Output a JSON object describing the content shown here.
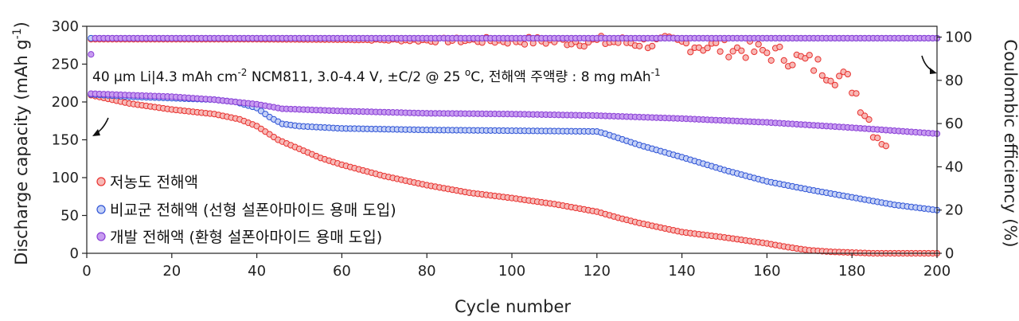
{
  "chart_data": {
    "type": "scatter",
    "condition": {
      "main": "40 μm Li|4.3 mAh cm",
      "sup1": "-2",
      "mid": " NCM811, 3.0-4.4 V, ±C/2 @ 25 ",
      "sup2": "o",
      "tail": "C, 전해액 주액량 : 8 mg mAh",
      "sup3": "-1"
    },
    "xlabel": "Cycle number",
    "ylabel_left": "Discharge capacity (mAh g",
    "ylabel_left_sup": "-1",
    "ylabel_left_end": ")",
    "ylabel_right": "Coulombic efficiency (%)",
    "xlim": [
      0,
      200
    ],
    "ylim_left": [
      0,
      300
    ],
    "ylim_right": [
      0,
      105
    ],
    "xticks": [
      "0",
      "20",
      "40",
      "60",
      "80",
      "100",
      "120",
      "140",
      "160",
      "180",
      "200"
    ],
    "yticks_left": [
      "0",
      "50",
      "100",
      "150",
      "200",
      "250",
      "300"
    ],
    "yticks_right": [
      "0",
      "20",
      "40",
      "60",
      "80",
      "100"
    ],
    "legend_position": "left-middle",
    "series": [
      {
        "name": "저농도 전해액",
        "color": "#e8312f",
        "fill": "#f7b9b6",
        "capacity_keypoints": [
          [
            1,
            209
          ],
          [
            10,
            198
          ],
          [
            20,
            190
          ],
          [
            30,
            184
          ],
          [
            36,
            177
          ],
          [
            40,
            168
          ],
          [
            45,
            150
          ],
          [
            50,
            138
          ],
          [
            55,
            126
          ],
          [
            60,
            117
          ],
          [
            70,
            102
          ],
          [
            80,
            90
          ],
          [
            90,
            80
          ],
          [
            100,
            73
          ],
          [
            110,
            65
          ],
          [
            120,
            55
          ],
          [
            125,
            47
          ],
          [
            130,
            40
          ],
          [
            140,
            28
          ],
          [
            150,
            21
          ],
          [
            160,
            13
          ],
          [
            165,
            8
          ],
          [
            170,
            4
          ],
          [
            175,
            2
          ],
          [
            180,
            1
          ],
          [
            185,
            0
          ],
          [
            200,
            0
          ]
        ],
        "ce_keypoints": [
          [
            1,
            99
          ],
          [
            40,
            99
          ],
          [
            90,
            98.5
          ],
          [
            120,
            98
          ],
          [
            140,
            97
          ],
          [
            150,
            95
          ],
          [
            160,
            93
          ],
          [
            165,
            91
          ],
          [
            170,
            88
          ],
          [
            175,
            84
          ],
          [
            180,
            78
          ],
          [
            184,
            62
          ],
          [
            186,
            55
          ],
          [
            188,
            52
          ]
        ]
      },
      {
        "name": "비교군 전해액 (선형 설폰아마이드 용매 도입)",
        "color": "#2f54d6",
        "fill": "#c4d0f6",
        "capacity_keypoints": [
          [
            1,
            210
          ],
          [
            10,
            207
          ],
          [
            20,
            205
          ],
          [
            30,
            203
          ],
          [
            35,
            200
          ],
          [
            40,
            192
          ],
          [
            43,
            180
          ],
          [
            46,
            171
          ],
          [
            50,
            168
          ],
          [
            60,
            165
          ],
          [
            80,
            163
          ],
          [
            100,
            162
          ],
          [
            120,
            161
          ],
          [
            122,
            158
          ],
          [
            130,
            143
          ],
          [
            140,
            127
          ],
          [
            150,
            110
          ],
          [
            160,
            95
          ],
          [
            170,
            84
          ],
          [
            180,
            74
          ],
          [
            190,
            64
          ],
          [
            200,
            57
          ]
        ],
        "ce_keypoints": [
          [
            1,
            99.5
          ],
          [
            200,
            99.5
          ]
        ]
      },
      {
        "name": "개발 전해액 (환형 설폰아마이드 용매 도입)",
        "color": "#8a3fd6",
        "fill": "#c79bf0",
        "capacity_keypoints": [
          [
            1,
            211
          ],
          [
            10,
            209
          ],
          [
            20,
            207
          ],
          [
            30,
            203
          ],
          [
            40,
            197
          ],
          [
            46,
            191
          ],
          [
            60,
            188
          ],
          [
            80,
            185
          ],
          [
            100,
            184
          ],
          [
            120,
            182
          ],
          [
            140,
            178
          ],
          [
            160,
            173
          ],
          [
            180,
            166
          ],
          [
            200,
            158
          ]
        ],
        "ce_keypoints": [
          [
            1,
            92
          ],
          [
            2,
            99.5
          ],
          [
            200,
            99.5
          ]
        ]
      }
    ]
  }
}
